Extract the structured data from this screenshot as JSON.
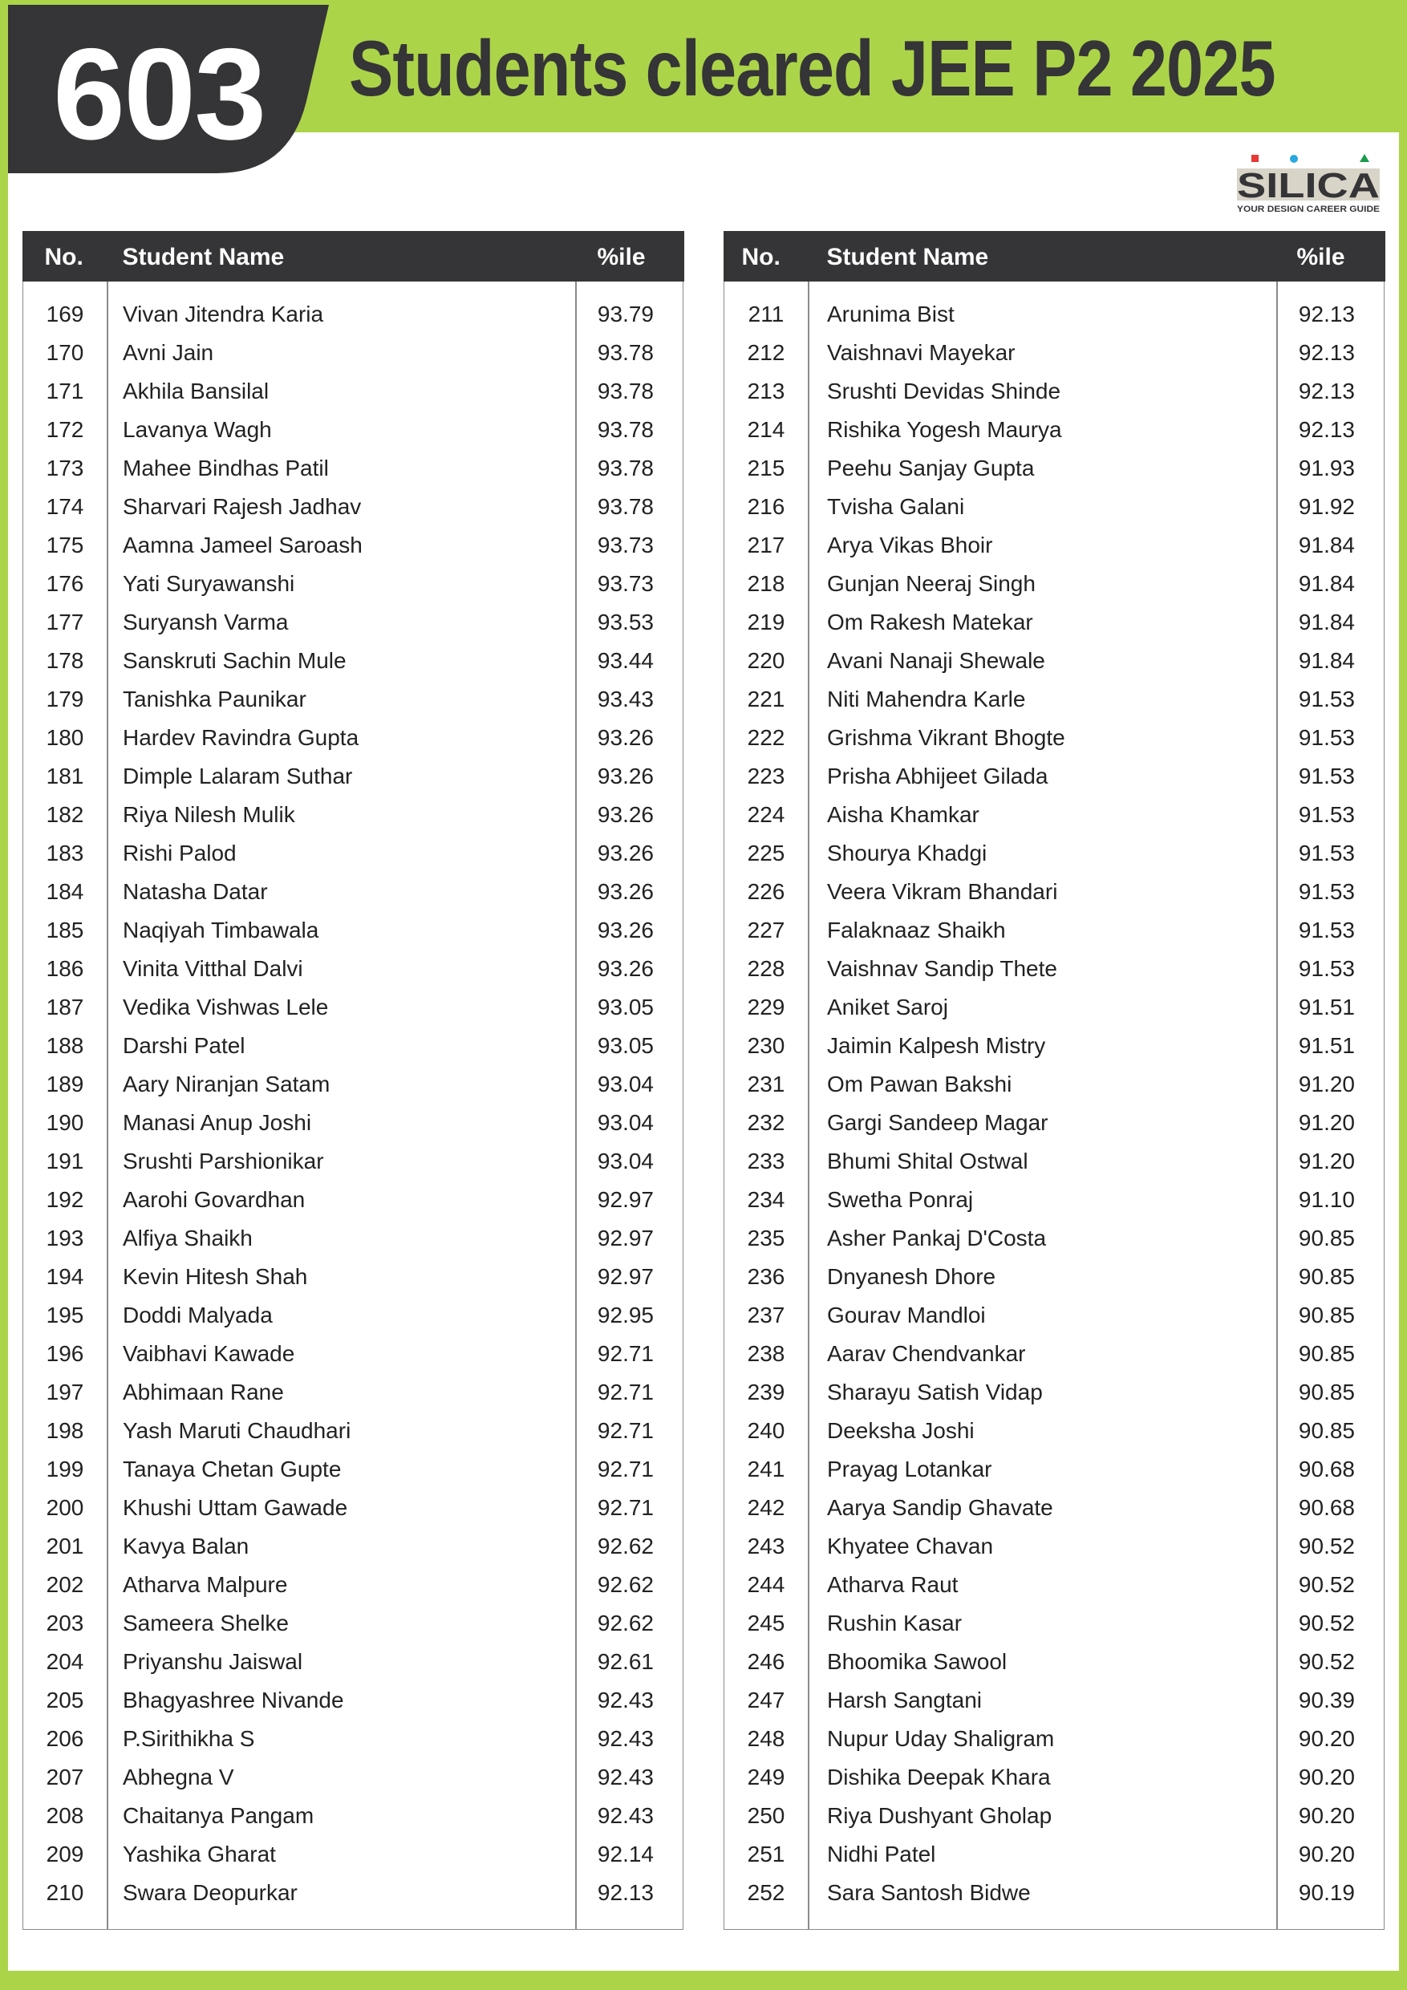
{
  "header": {
    "count": "603",
    "title": "Students cleared JEE P2 2025"
  },
  "logo": {
    "name": "SILICA",
    "tagline": "YOUR DESIGN CAREER GUIDE"
  },
  "colors": {
    "brand_green": "#acd449",
    "dark": "#353437",
    "logo_red": "#e53935",
    "logo_blue": "#29a8e0",
    "logo_green": "#1a9a4a"
  },
  "table_headers": {
    "no": "No.",
    "name": "Student Name",
    "percentile": "%ile"
  },
  "tables": [
    {
      "rows": [
        [
          "169",
          "Vivan Jitendra Karia",
          "93.79"
        ],
        [
          "170",
          "Avni Jain",
          "93.78"
        ],
        [
          "171",
          "Akhila Bansilal",
          "93.78"
        ],
        [
          "172",
          "Lavanya Wagh",
          "93.78"
        ],
        [
          "173",
          "Mahee Bindhas Patil",
          "93.78"
        ],
        [
          "174",
          "Sharvari Rajesh Jadhav",
          "93.78"
        ],
        [
          "175",
          "Aamna Jameel Saroash",
          "93.73"
        ],
        [
          "176",
          "Yati Suryawanshi",
          "93.73"
        ],
        [
          "177",
          "Suryansh Varma",
          "93.53"
        ],
        [
          "178",
          "Sanskruti Sachin Mule",
          "93.44"
        ],
        [
          "179",
          "Tanishka Paunikar",
          "93.43"
        ],
        [
          "180",
          "Hardev Ravindra Gupta",
          "93.26"
        ],
        [
          "181",
          "Dimple Lalaram Suthar",
          "93.26"
        ],
        [
          "182",
          "Riya Nilesh Mulik",
          "93.26"
        ],
        [
          "183",
          "Rishi Palod",
          "93.26"
        ],
        [
          "184",
          "Natasha Datar",
          "93.26"
        ],
        [
          "185",
          "Naqiyah Timbawala",
          "93.26"
        ],
        [
          "186",
          "Vinita Vitthal Dalvi",
          "93.26"
        ],
        [
          "187",
          "Vedika Vishwas Lele",
          "93.05"
        ],
        [
          "188",
          "Darshi Patel",
          "93.05"
        ],
        [
          "189",
          "Aary Niranjan Satam",
          "93.04"
        ],
        [
          "190",
          "Manasi Anup Joshi",
          "93.04"
        ],
        [
          "191",
          "Srushti Parshionikar",
          "93.04"
        ],
        [
          "192",
          "Aarohi Govardhan",
          "92.97"
        ],
        [
          "193",
          "Alfiya Shaikh",
          "92.97"
        ],
        [
          "194",
          "Kevin Hitesh Shah",
          "92.97"
        ],
        [
          "195",
          "Doddi Malyada",
          "92.95"
        ],
        [
          "196",
          "Vaibhavi Kawade",
          "92.71"
        ],
        [
          "197",
          "Abhimaan Rane",
          "92.71"
        ],
        [
          "198",
          "Yash Maruti Chaudhari",
          "92.71"
        ],
        [
          "199",
          "Tanaya Chetan Gupte",
          "92.71"
        ],
        [
          "200",
          "Khushi Uttam Gawade",
          "92.71"
        ],
        [
          "201",
          "Kavya Balan",
          "92.62"
        ],
        [
          "202",
          "Atharva Malpure",
          "92.62"
        ],
        [
          "203",
          "Sameera Shelke",
          "92.62"
        ],
        [
          "204",
          "Priyanshu Jaiswal",
          "92.61"
        ],
        [
          "205",
          "Bhagyashree Nivande",
          "92.43"
        ],
        [
          "206",
          "P.Sirithikha S",
          "92.43"
        ],
        [
          "207",
          "Abhegna V",
          "92.43"
        ],
        [
          "208",
          "Chaitanya Pangam",
          "92.43"
        ],
        [
          "209",
          "Yashika Gharat",
          "92.14"
        ],
        [
          "210",
          "Swara Deopurkar",
          "92.13"
        ]
      ]
    },
    {
      "rows": [
        [
          "211",
          "Arunima Bist",
          "92.13"
        ],
        [
          "212",
          "Vaishnavi Mayekar",
          "92.13"
        ],
        [
          "213",
          "Srushti Devidas Shinde",
          "92.13"
        ],
        [
          "214",
          "Rishika Yogesh Maurya",
          "92.13"
        ],
        [
          "215",
          "Peehu Sanjay Gupta",
          "91.93"
        ],
        [
          "216",
          "Tvisha Galani",
          "91.92"
        ],
        [
          "217",
          "Arya Vikas Bhoir",
          "91.84"
        ],
        [
          "218",
          "Gunjan Neeraj Singh",
          "91.84"
        ],
        [
          "219",
          "Om Rakesh Matekar",
          "91.84"
        ],
        [
          "220",
          "Avani Nanaji Shewale",
          "91.84"
        ],
        [
          "221",
          "Niti Mahendra Karle",
          "91.53"
        ],
        [
          "222",
          "Grishma Vikrant Bhogte",
          "91.53"
        ],
        [
          "223",
          "Prisha Abhijeet Gilada",
          "91.53"
        ],
        [
          "224",
          "Aisha Khamkar",
          "91.53"
        ],
        [
          "225",
          "Shourya Khadgi",
          "91.53"
        ],
        [
          "226",
          "Veera Vikram Bhandari",
          "91.53"
        ],
        [
          "227",
          "Falaknaaz Shaikh",
          "91.53"
        ],
        [
          "228",
          "Vaishnav Sandip Thete",
          "91.53"
        ],
        [
          "229",
          "Aniket Saroj",
          "91.51"
        ],
        [
          "230",
          "Jaimin Kalpesh Mistry",
          "91.51"
        ],
        [
          "231",
          "Om Pawan Bakshi",
          "91.20"
        ],
        [
          "232",
          "Gargi Sandeep Magar",
          "91.20"
        ],
        [
          "233",
          "Bhumi Shital Ostwal",
          "91.20"
        ],
        [
          "234",
          "Swetha Ponraj",
          "91.10"
        ],
        [
          "235",
          "Asher Pankaj D'Costa",
          "90.85"
        ],
        [
          "236",
          "Dnyanesh Dhore",
          "90.85"
        ],
        [
          "237",
          "Gourav Mandloi",
          "90.85"
        ],
        [
          "238",
          "Aarav Chendvankar",
          "90.85"
        ],
        [
          "239",
          "Sharayu Satish Vidap",
          "90.85"
        ],
        [
          "240",
          "Deeksha Joshi",
          "90.85"
        ],
        [
          "241",
          "Prayag Lotankar",
          "90.68"
        ],
        [
          "242",
          "Aarya Sandip Ghavate",
          "90.68"
        ],
        [
          "243",
          "Khyatee Chavan",
          "90.52"
        ],
        [
          "244",
          "Atharva Raut",
          "90.52"
        ],
        [
          "245",
          "Rushin Kasar",
          "90.52"
        ],
        [
          "246",
          "Bhoomika Sawool",
          "90.52"
        ],
        [
          "247",
          "Harsh Sangtani",
          "90.39"
        ],
        [
          "248",
          "Nupur Uday Shaligram",
          "90.20"
        ],
        [
          "249",
          "Dishika Deepak Khara",
          "90.20"
        ],
        [
          "250",
          "Riya Dushyant Gholap",
          "90.20"
        ],
        [
          "251",
          "Nidhi Patel",
          "90.20"
        ],
        [
          "252",
          "Sara Santosh Bidwe",
          "90.19"
        ]
      ]
    }
  ]
}
